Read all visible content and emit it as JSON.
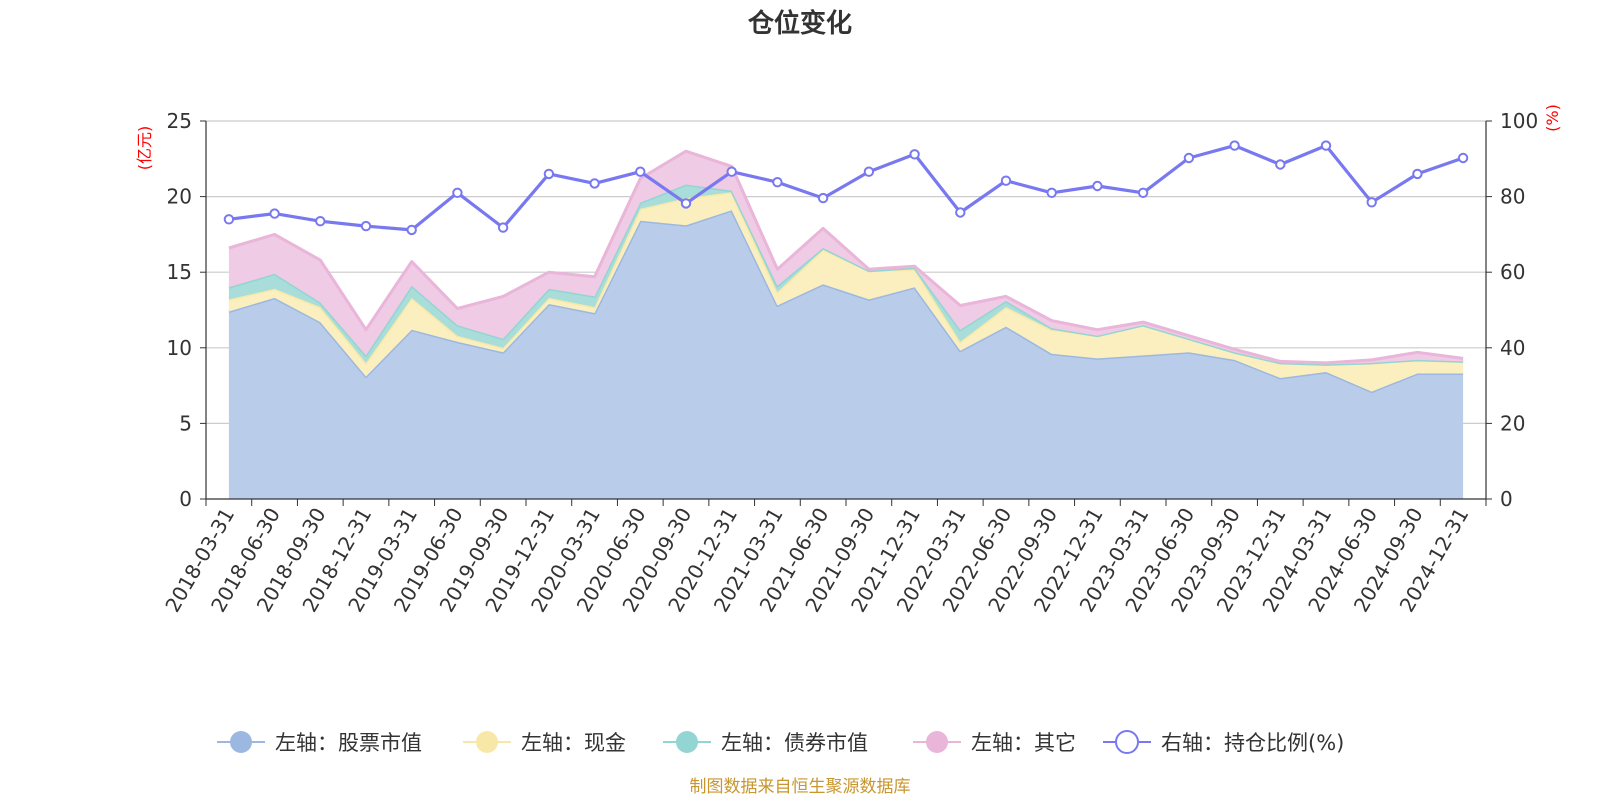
{
  "chart_data": {
    "type": "area",
    "title": "仓位变化",
    "source": "制图数据来自恒生聚源数据库",
    "left_axis": {
      "unit": "(亿元)",
      "min": 0,
      "max": 25,
      "ticks": [
        0,
        5,
        10,
        15,
        20,
        25
      ]
    },
    "right_axis": {
      "unit": "(%)",
      "min": 0,
      "max": 100,
      "ticks": [
        0,
        20,
        40,
        60,
        80,
        100
      ]
    },
    "categories": [
      "2018-03-31",
      "2018-06-30",
      "2018-09-30",
      "2018-12-31",
      "2019-03-31",
      "2019-06-30",
      "2019-09-30",
      "2019-12-31",
      "2020-03-31",
      "2020-06-30",
      "2020-09-30",
      "2020-12-31",
      "2021-03-31",
      "2021-06-30",
      "2021-09-30",
      "2021-12-31",
      "2022-03-31",
      "2022-06-30",
      "2022-09-30",
      "2022-12-31",
      "2023-03-31",
      "2023-06-30",
      "2023-09-30",
      "2023-12-31",
      "2024-03-31",
      "2024-06-30",
      "2024-09-30",
      "2024-12-31"
    ],
    "series": [
      {
        "name": "左轴：股票市值",
        "axis": "left",
        "kind": "stack",
        "color": "#9cb8e0",
        "fill": "#b9cdea",
        "values": [
          12.4,
          13.3,
          11.7,
          8.1,
          11.2,
          10.4,
          9.7,
          12.9,
          12.3,
          18.4,
          18.1,
          19.1,
          12.8,
          14.2,
          13.2,
          14.0,
          9.8,
          11.4,
          9.6,
          9.3,
          9.5,
          9.7,
          9.2,
          8.0,
          8.4,
          7.1,
          8.3,
          8.3
        ]
      },
      {
        "name": "左轴：现金",
        "axis": "left",
        "kind": "stack",
        "color": "#f8e8a8",
        "fill": "#fbefbf",
        "values": [
          0.8,
          0.6,
          1.0,
          0.9,
          2.1,
          0.4,
          0.3,
          0.4,
          0.4,
          0.8,
          1.8,
          1.2,
          0.9,
          2.3,
          1.9,
          1.2,
          0.6,
          1.3,
          1.6,
          1.5,
          2.0,
          0.9,
          0.5,
          1.0,
          0.5,
          1.9,
          0.9,
          0.8
        ]
      },
      {
        "name": "左轴：债券市值",
        "axis": "left",
        "kind": "stack",
        "color": "#93d5d2",
        "fill": "#a8ddd9",
        "values": [
          0.8,
          1.0,
          0.3,
          0.5,
          0.8,
          0.7,
          0.6,
          0.6,
          0.7,
          0.4,
          0.9,
          0.1,
          0.4,
          0.1,
          0.0,
          0.1,
          0.8,
          0.4,
          0.1,
          0.0,
          0.0,
          0.0,
          0.0,
          0.0,
          0.0,
          0.0,
          0.0,
          0.0
        ]
      },
      {
        "name": "左轴：其它",
        "axis": "left",
        "kind": "stack",
        "color": "#e9b5d9",
        "fill": "#efcbe5",
        "values": [
          2.6,
          2.6,
          2.8,
          1.7,
          1.6,
          1.1,
          2.8,
          1.1,
          1.3,
          1.6,
          2.2,
          1.6,
          1.1,
          1.3,
          0.1,
          0.1,
          1.6,
          0.3,
          0.5,
          0.4,
          0.2,
          0.2,
          0.2,
          0.1,
          0.1,
          0.2,
          0.5,
          0.2
        ]
      },
      {
        "name": "右轴：持仓比例(%)",
        "axis": "right",
        "kind": "line",
        "color": "#7878f0",
        "values": [
          74.0,
          75.5,
          73.5,
          72.2,
          71.2,
          81.0,
          71.8,
          86.0,
          83.5,
          86.6,
          78.2,
          86.6,
          83.8,
          79.6,
          86.6,
          91.2,
          75.8,
          84.2,
          81.0,
          82.8,
          81.0,
          90.2,
          93.5,
          88.5,
          93.5,
          78.5,
          86.0,
          90.2
        ]
      }
    ]
  }
}
